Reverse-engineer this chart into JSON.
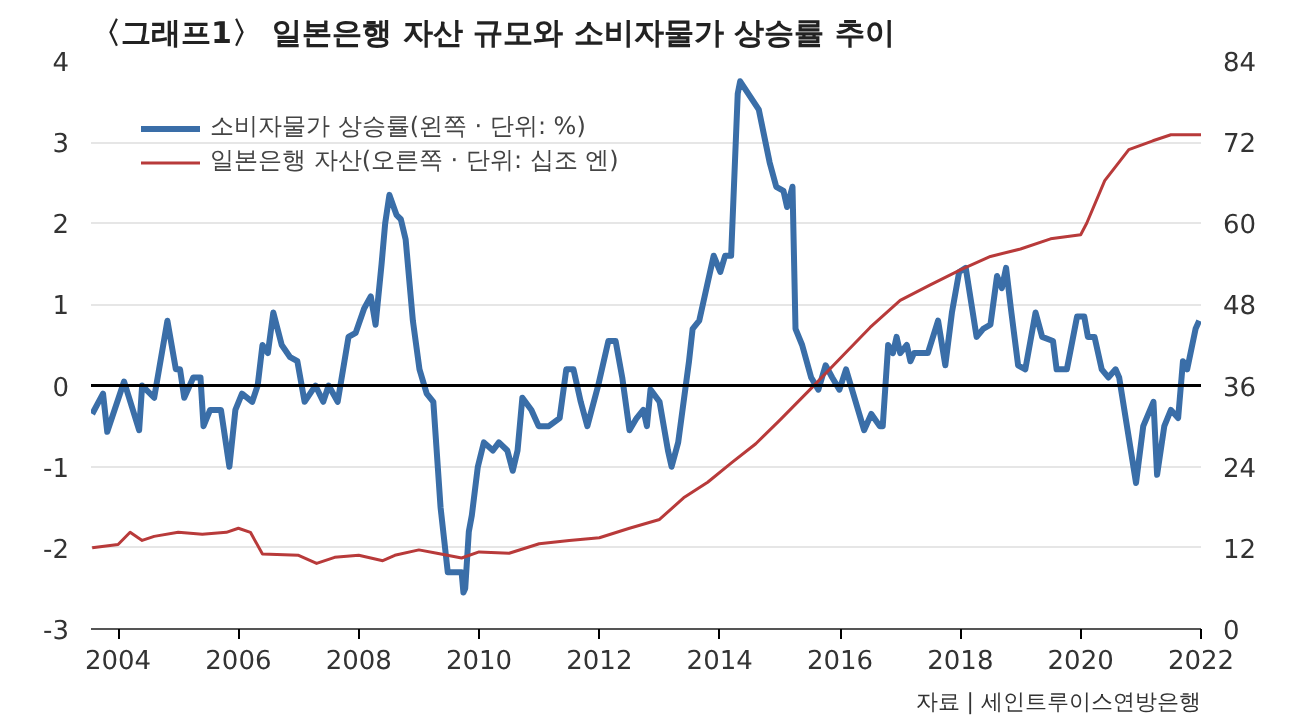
{
  "chart_data": {
    "type": "line",
    "title": "〈그래프1〉 일본은행 자산 규모와 소비자물가 상승률 추이",
    "xlim": [
      2003.55,
      2022
    ],
    "xticks": [
      2004,
      2006,
      2008,
      2010,
      2012,
      2014,
      2016,
      2018,
      2020,
      2022
    ],
    "ylim": [
      -3,
      4
    ],
    "yticks": [
      -3,
      -2,
      -1,
      0,
      1,
      2,
      3,
      4
    ],
    "y2lim": [
      0,
      84
    ],
    "y2ticks": [
      0,
      12,
      24,
      36,
      48,
      60,
      72,
      84
    ],
    "grid": "y",
    "legend": "top left",
    "marker": "none",
    "line_style": "solid",
    "ref_lines": [
      {
        "axis": "y",
        "value": 0,
        "color": "#000000"
      }
    ],
    "annotations": [
      "자료 | 세인트루이스연방은행"
    ],
    "series": [
      {
        "name": "소비자물가 상승률(왼쪽 · 단위: %)",
        "color": "#3a6ea8",
        "x": [
          2003.57,
          2003.75,
          2003.82,
          2004.1,
          2004.35,
          2004.4,
          2004.6,
          2004.82,
          2004.96,
          2005.03,
          2005.1,
          2005.25,
          2005.37,
          2005.42,
          2005.53,
          2005.71,
          2005.85,
          2005.95,
          2006.06,
          2006.23,
          2006.32,
          2006.4,
          2006.49,
          2006.58,
          2006.72,
          2006.86,
          2006.98,
          2007.1,
          2007.28,
          2007.41,
          2007.5,
          2007.65,
          2007.83,
          2007.95,
          2008.09,
          2008.2,
          2008.28,
          2008.38,
          2008.44,
          2008.51,
          2008.63,
          2008.7,
          2008.78,
          2008.9,
          2009.01,
          2009.13,
          2009.24,
          2009.36,
          2009.48,
          2009.71,
          2009.74,
          2009.77,
          2009.83,
          2009.88,
          2009.98,
          2010.08,
          2010.23,
          2010.33,
          2010.47,
          2010.56,
          2010.64,
          2010.72,
          2010.87,
          2010.99,
          2011.16,
          2011.34,
          2011.45,
          2011.57,
          2011.69,
          2011.8,
          2011.98,
          2012.15,
          2012.27,
          2012.38,
          2012.5,
          2012.62,
          2012.73,
          2012.79,
          2012.85,
          2013.0,
          2013.14,
          2013.2,
          2013.31,
          2013.49,
          2013.55,
          2013.66,
          2013.78,
          2013.9,
          2014.01,
          2014.09,
          2014.19,
          2014.3,
          2014.34,
          2014.65,
          2014.83,
          2014.94,
          2015.06,
          2015.12,
          2015.21,
          2015.26,
          2015.37,
          2015.52,
          2015.64,
          2015.76,
          2015.87,
          2015.99,
          2016.1,
          2016.28,
          2016.4,
          2016.52,
          2016.66,
          2016.71,
          2016.8,
          2016.88,
          2016.94,
          2017.0,
          2017.11,
          2017.17,
          2017.23,
          2017.46,
          2017.63,
          2017.75,
          2017.86,
          2017.98,
          2018.09,
          2018.27,
          2018.38,
          2018.5,
          2018.61,
          2018.69,
          2018.76,
          2018.84,
          2018.96,
          2019.08,
          2019.25,
          2019.36,
          2019.54,
          2019.6,
          2019.77,
          2019.94,
          2020.06,
          2020.12,
          2020.23,
          2020.35,
          2020.46,
          2020.58,
          2020.64,
          2020.92,
          2021.04,
          2021.21,
          2021.27,
          2021.39,
          2021.5,
          2021.62,
          2021.7,
          2021.77,
          2021.91,
          2021.97
        ],
        "values": [
          -0.35,
          -0.1,
          -0.57,
          0.05,
          -0.55,
          0,
          -0.15,
          0.8,
          0.2,
          0.2,
          -0.15,
          0.1,
          0.1,
          -0.5,
          -0.3,
          -0.3,
          -1.0,
          -0.3,
          -0.1,
          -0.2,
          0,
          0.5,
          0.4,
          0.9,
          0.5,
          0.35,
          0.3,
          -0.2,
          0,
          -0.2,
          0,
          -0.2,
          0.6,
          0.65,
          0.95,
          1.1,
          0.75,
          1.5,
          2.0,
          2.35,
          2.1,
          2.05,
          1.8,
          0.8,
          0.2,
          -0.1,
          -0.2,
          -1.5,
          -2.3,
          -2.3,
          -2.55,
          -2.5,
          -1.8,
          -1.6,
          -1.0,
          -0.7,
          -0.8,
          -0.7,
          -0.8,
          -1.05,
          -0.8,
          -0.15,
          -0.3,
          -0.5,
          -0.5,
          -0.4,
          0.2,
          0.2,
          -0.2,
          -0.5,
          0,
          0.55,
          0.55,
          0.1,
          -0.55,
          -0.4,
          -0.3,
          -0.5,
          -0.05,
          -0.2,
          -0.8,
          -1.0,
          -0.7,
          0.3,
          0.7,
          0.8,
          1.2,
          1.6,
          1.4,
          1.6,
          1.6,
          3.6,
          3.75,
          3.4,
          2.75,
          2.45,
          2.4,
          2.2,
          2.45,
          0.7,
          0.5,
          0.1,
          -0.05,
          0.25,
          0.1,
          -0.05,
          0.2,
          -0.25,
          -0.55,
          -0.35,
          -0.5,
          -0.5,
          0.5,
          0.4,
          0.6,
          0.4,
          0.5,
          0.3,
          0.4,
          0.4,
          0.8,
          0.25,
          0.9,
          1.4,
          1.45,
          0.6,
          0.7,
          0.75,
          1.35,
          1.2,
          1.45,
          0.95,
          0.25,
          0.2,
          0.9,
          0.6,
          0.55,
          0.2,
          0.2,
          0.85,
          0.85,
          0.6,
          0.6,
          0.2,
          0.1,
          0.2,
          0.1,
          -1.2,
          -0.5,
          -0.2,
          -1.1,
          -0.5,
          -0.3,
          -0.4,
          0.3,
          0.2,
          0.7,
          0.8
        ]
      },
      {
        "name": "일본은행 자산(오른쪽 · 단위: 십조 엔)",
        "color": "#b83a3a",
        "axis": "y2",
        "x": [
          2003.57,
          2004.0,
          2004.2,
          2004.4,
          2004.6,
          2005.0,
          2005.4,
          2005.8,
          2006.0,
          2006.2,
          2006.4,
          2007.0,
          2007.3,
          2007.6,
          2008.0,
          2008.4,
          2008.6,
          2009.0,
          2009.3,
          2009.71,
          2010.0,
          2010.5,
          2011.0,
          2011.5,
          2012.0,
          2012.5,
          2013.0,
          2013.4,
          2013.8,
          2014.2,
          2014.6,
          2015.0,
          2015.5,
          2016.0,
          2016.5,
          2017.0,
          2017.5,
          2018.0,
          2018.5,
          2019.0,
          2019.5,
          2020.0,
          2020.1,
          2020.4,
          2020.6,
          2020.8,
          2021.2,
          2021.5,
          2022.0
        ],
        "values": [
          12.0,
          12.5,
          14.3,
          13.1,
          13.7,
          14.3,
          14.0,
          14.3,
          14.9,
          14.3,
          11.1,
          10.9,
          9.7,
          10.6,
          10.9,
          10.1,
          10.9,
          11.7,
          11.2,
          10.5,
          11.4,
          11.2,
          12.6,
          13.1,
          13.5,
          14.9,
          16.2,
          19.4,
          21.7,
          24.6,
          27.4,
          30.9,
          35.4,
          40.0,
          44.6,
          48.6,
          50.9,
          53.1,
          55.1,
          56.2,
          57.7,
          58.3,
          60.0,
          66.3,
          68.6,
          70.9,
          72.2,
          73.1,
          73.1
        ]
      }
    ]
  }
}
